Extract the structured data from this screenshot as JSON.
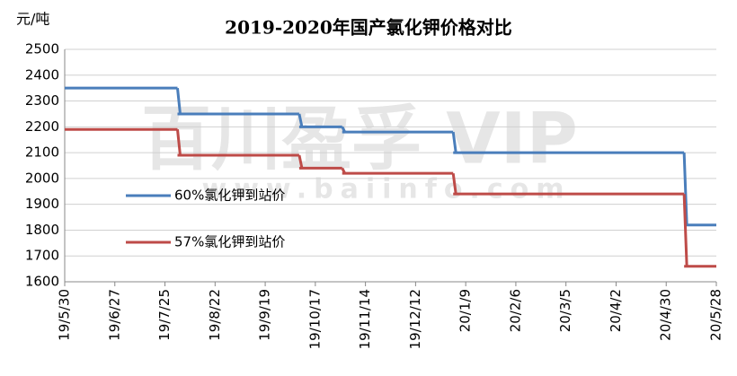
{
  "chart_data": {
    "type": "step-line",
    "title": "2019-2020年国产氯化钾价格对比",
    "y_label": "元/吨",
    "watermark": "百川盈孚 VIP",
    "watermark_url": "www.baiinfo.com",
    "x": [
      "19/5/30",
      "19/8/1",
      "19/10/8",
      "19/11/1",
      "20/1/2",
      "20/5/10",
      "20/5/28"
    ],
    "xlim": [
      "19/5/30",
      "20/5/28"
    ],
    "xticks": [
      "19/5/30",
      "19/6/27",
      "19/7/25",
      "19/8/22",
      "19/9/19",
      "19/10/17",
      "19/11/14",
      "19/12/12",
      "20/1/9",
      "20/2/6",
      "20/3/5",
      "20/4/2",
      "20/4/30",
      "20/5/28"
    ],
    "ylim": [
      1600,
      2500
    ],
    "yticks": [
      1600,
      1700,
      1800,
      1900,
      2000,
      2100,
      2200,
      2300,
      2400,
      2500
    ],
    "grid": true,
    "series": [
      {
        "name": "60%氯化钾到站价",
        "color": "#4a7ebb",
        "values": [
          2350,
          2250,
          2200,
          2180,
          2100,
          1820,
          1820
        ]
      },
      {
        "name": "57%氯化钾到站价",
        "color": "#be4b48",
        "values": [
          2190,
          2090,
          2040,
          2020,
          1940,
          1660,
          1660
        ]
      }
    ]
  }
}
